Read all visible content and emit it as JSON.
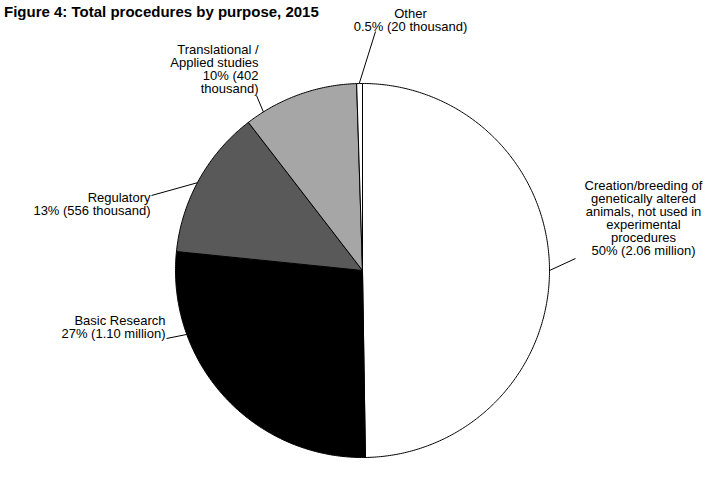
{
  "chart_data": {
    "type": "pie",
    "title": "Figure 4: Total procedures by purpose, 2015",
    "categories": [
      "Creation/breeding of genetically altered animals, not used in experimental procedures",
      "Basic Research",
      "Regulatory",
      "Translational / Applied studies",
      "Other"
    ],
    "values": [
      50,
      27,
      13,
      10,
      0.5
    ],
    "value_labels": [
      "50% (2.06 million)",
      "27% (1.10 million)",
      "13% (556 thousand)",
      "10% (402 thousand)",
      "0.5% (20 thousand)"
    ],
    "colors": [
      "#ffffff",
      "#000000",
      "#595959",
      "#a6a6a6",
      "#ffffff"
    ],
    "data_labels": true
  }
}
